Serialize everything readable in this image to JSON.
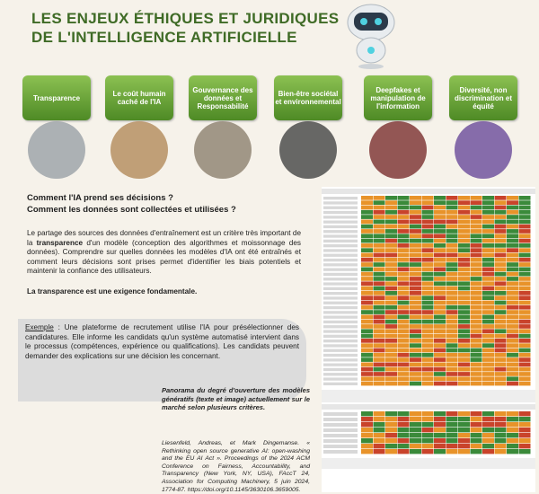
{
  "header": {
    "title_lines": [
      "LES ENJEUX ÉTHIQUES ET JURIDIQUES",
      "DE L'INTELLIGENCE ARTIFICIELLE"
    ]
  },
  "tabs": [
    "Transparence",
    "Le coût humain caché de l'IA",
    "Gouvernance des données et Responsabilité",
    "Bien-être sociétal et environnemental",
    "Deepfakes et manipulation de l'information",
    "Diversité, non discrimination et équité"
  ],
  "questions": [
    "Comment l'IA prend ses décisions ?",
    "Comment les données sont collectées et utilisées ?"
  ],
  "paragraph": {
    "before": "Le partage des sources des données d'entraînement est un critère très important de la ",
    "bold": "transparence",
    "after": " d'un modèle (conception des algorithmes et moissonnage des données). Comprendre sur quelles données les modèles d'IA ont été entraînés et comment leurs décisions sont prises permet d'identifier les biais potentiels et maintenir la confiance des utilisateurs."
  },
  "conclusion": "La transparence est une exigence fondamentale.",
  "example": {
    "label": "Exemple",
    "text": " : Une plateforme de recrutement utilise l'IA pour présélectionner des candidatures. Elle informe les candidats qu'un système automatisé intervient dans le processus (compétences, expérience ou qualifications). Les candidats peuvent demander des explications sur une décision les concernant."
  },
  "caption": "Panorama du degré d'ouverture des modèles génératifs (texte et image) actuellement sur le marché selon plusieurs critères.",
  "reference": "Liesenfeld, Andreas, et Mark Dingemanse. « Rethinking open source generative AI: open-washing and the EU AI Act ». Proceedings of the 2024 ACM Conference on Fairness, Accountability, and Transparency (New York, NY, USA), FAccT 24, Association for Computing Machinery, 5 juin 2024, 1774‑87. https://doi.org/10.1145/3630106.3659005."
}
